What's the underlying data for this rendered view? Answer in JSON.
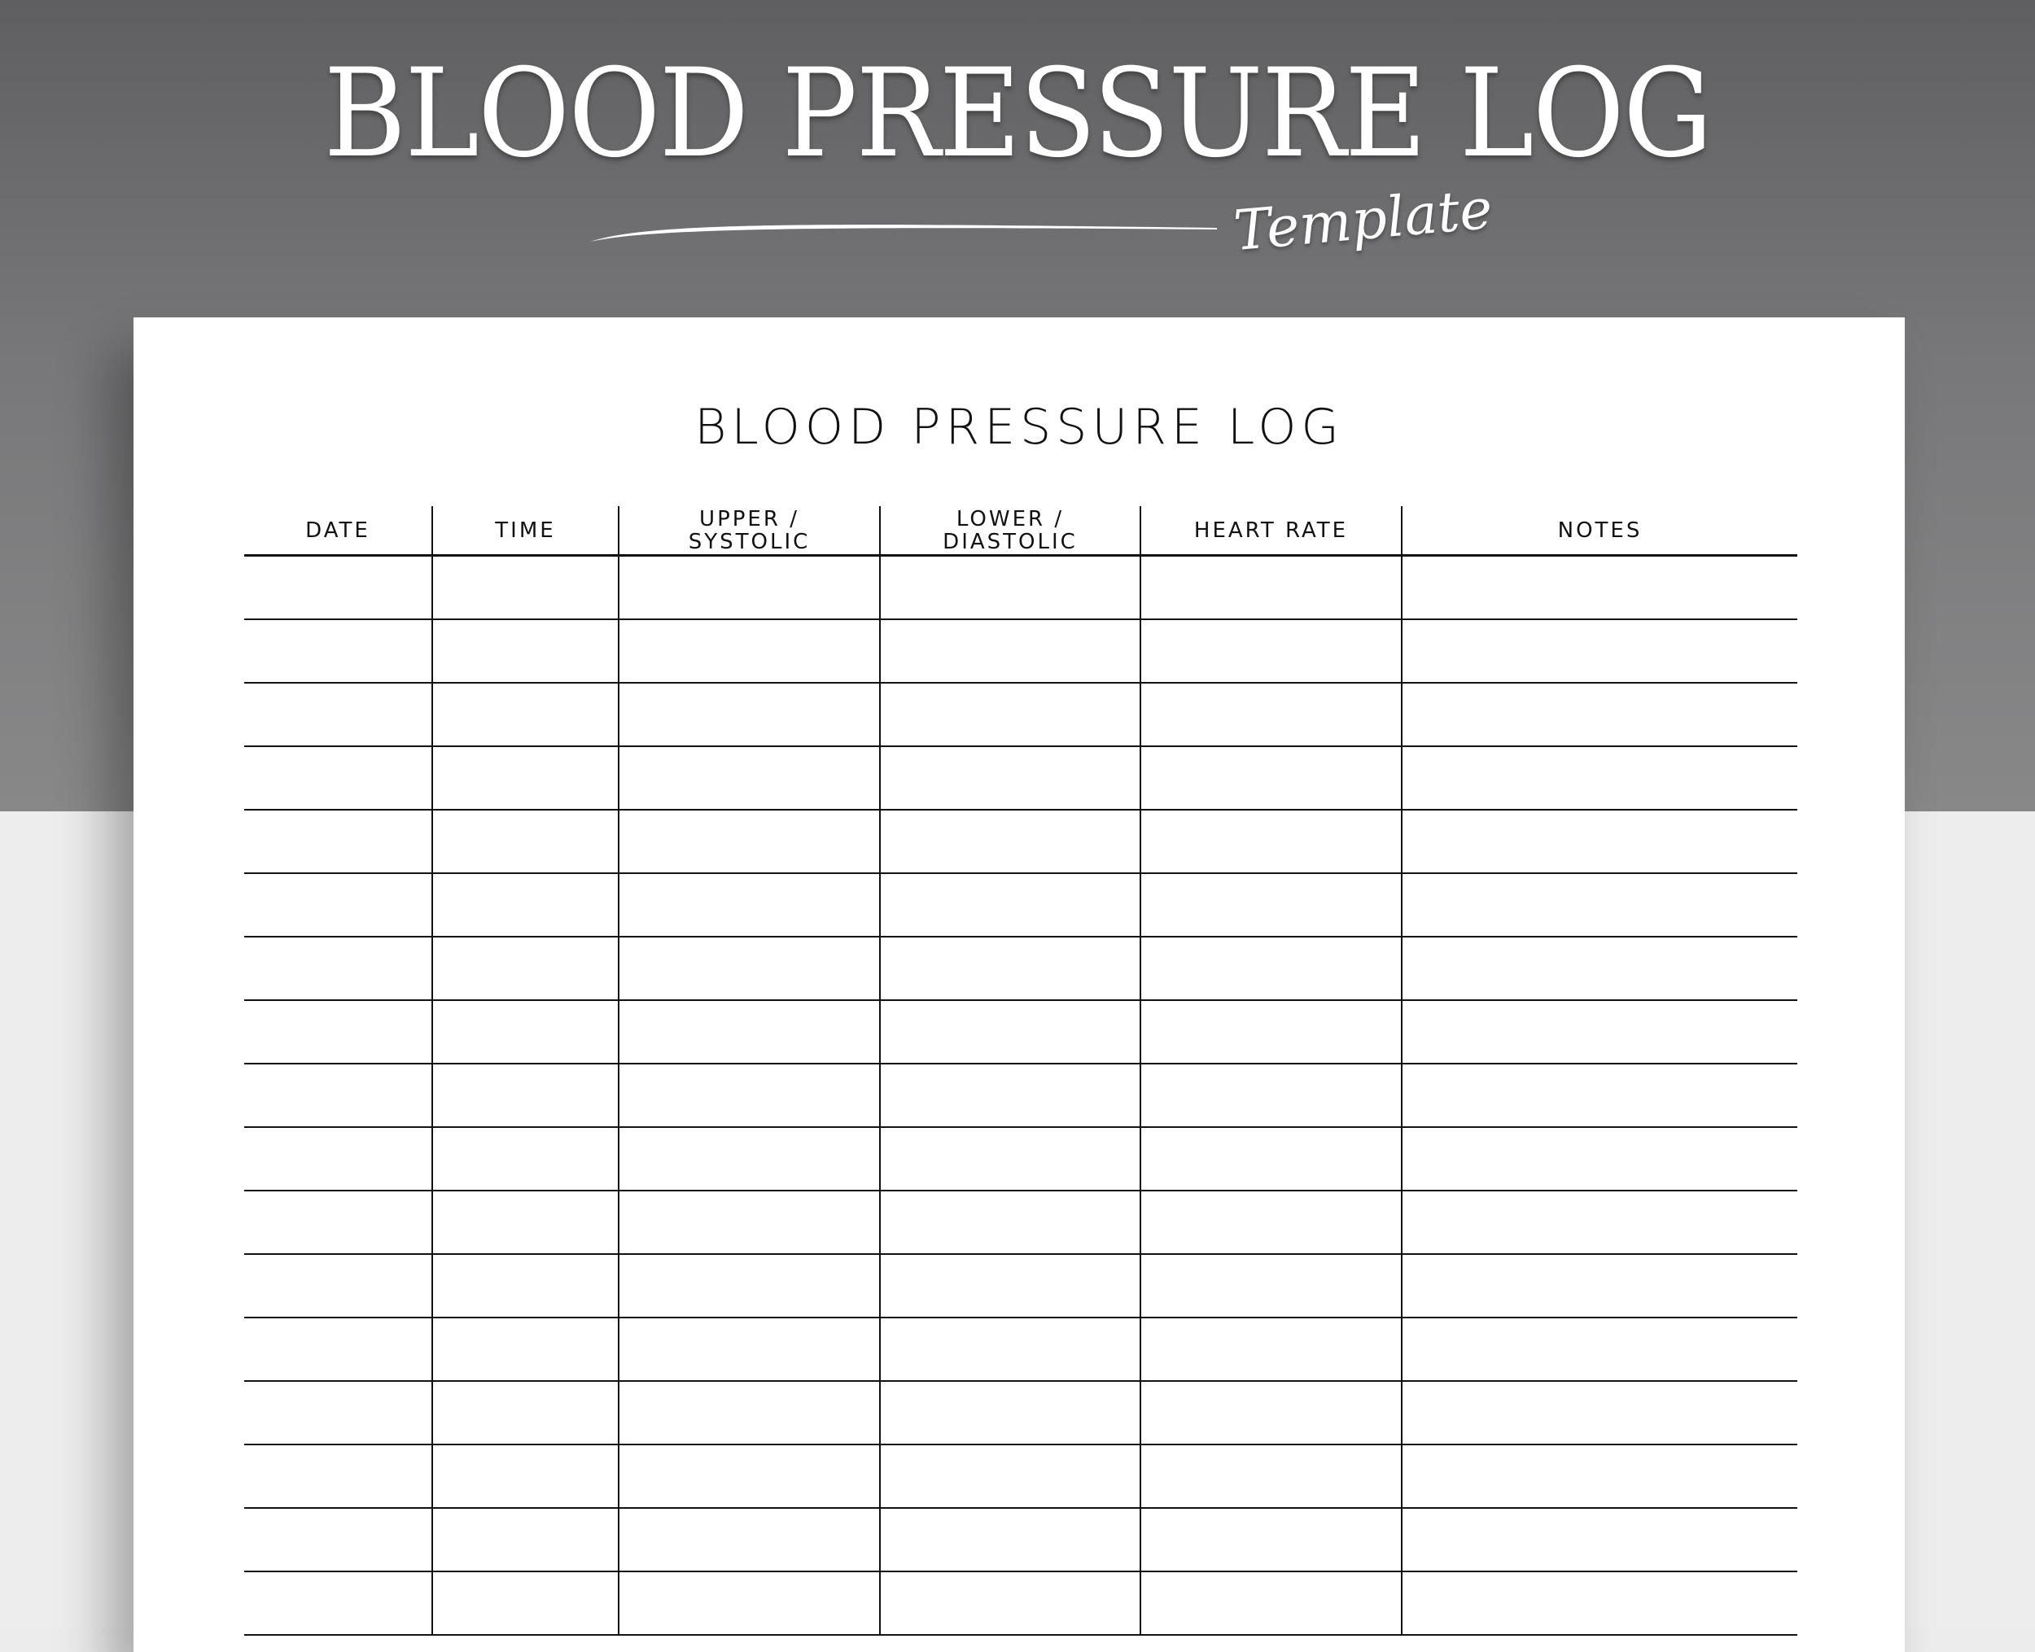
{
  "banner": {
    "title": "BLOOD PRESSURE LOG",
    "subtitle": "Template"
  },
  "sheet": {
    "title": "BLOOD PRESSURE LOG",
    "columns": [
      {
        "label": "DATE"
      },
      {
        "label": "TIME"
      },
      {
        "label": "UPPER / SYSTOLIC"
      },
      {
        "label": "LOWER / DIASTOLIC"
      },
      {
        "label": "HEART RATE"
      },
      {
        "label": "NOTES"
      }
    ]
  },
  "colors": {
    "background_top": "#78787a",
    "background_bottom": "#ededed",
    "paper": "#ffffff",
    "ink": "#111111"
  }
}
